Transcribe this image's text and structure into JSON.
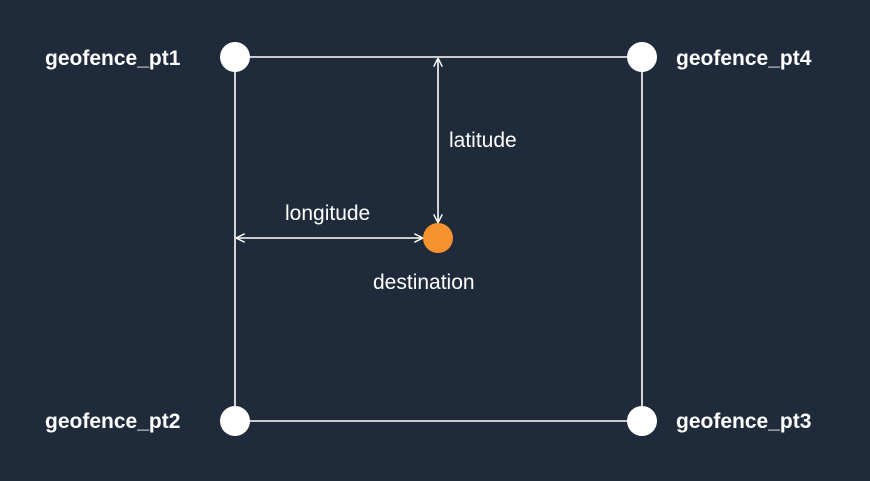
{
  "points": {
    "pt1": "geofence_pt1",
    "pt2": "geofence_pt2",
    "pt3": "geofence_pt3",
    "pt4": "geofence_pt4"
  },
  "destination": "destination",
  "latitude": "latitude",
  "longitude": "longitude",
  "colors": {
    "background": "#1f2b3a",
    "lines": "#ffffff",
    "corner_points": "#ffffff",
    "destination": "#f7922f"
  }
}
